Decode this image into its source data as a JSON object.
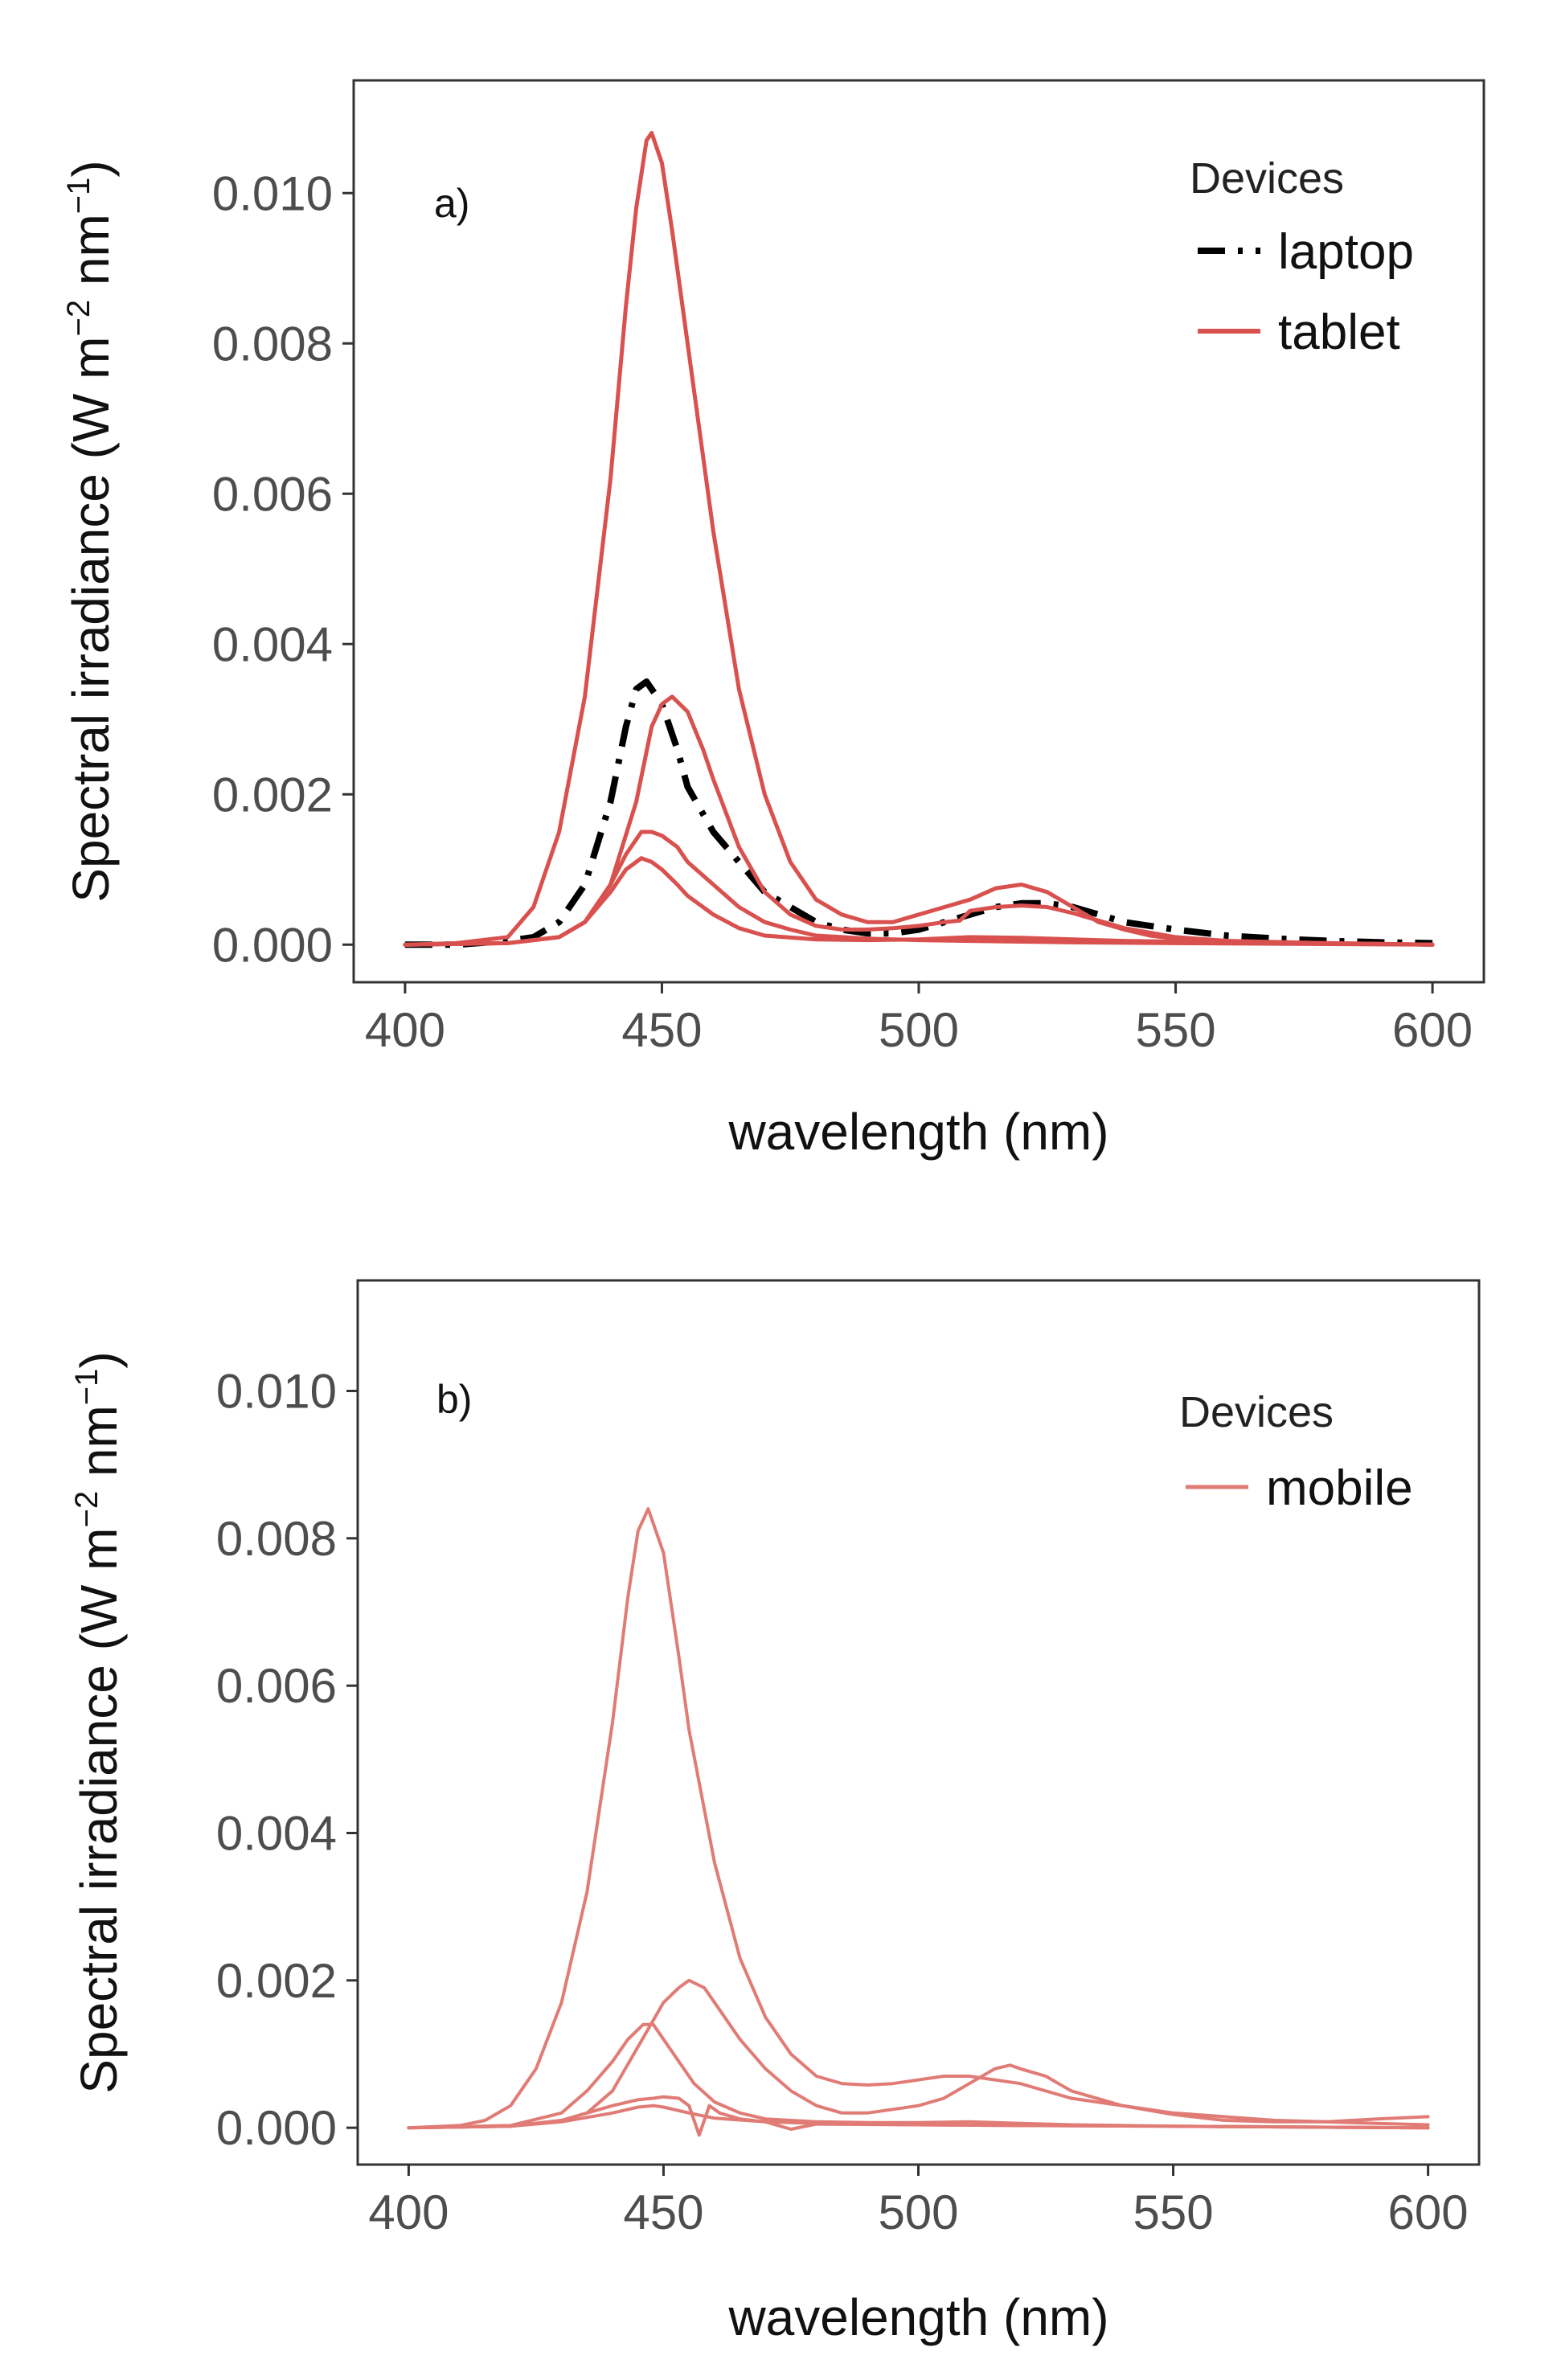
{
  "figure": {
    "colors": {
      "laptop": "#000000",
      "tablet": "#d9514e",
      "mobile": "#e07b75",
      "axis": "#333333",
      "tick_text": "#4d4d4d"
    }
  },
  "chart_data": [
    {
      "type": "line",
      "panel_label": "a)",
      "xlabel": "wavelength (nm)",
      "ylabel_main": "Spectral irradiance (W m",
      "ylabel_sup1": "−2",
      "ylabel_mid": " nm",
      "ylabel_sup2": "−1",
      "ylabel_end": ")",
      "xlim": [
        400,
        600
      ],
      "ylim": [
        -0.0005,
        0.0115
      ],
      "xticks": [
        400,
        450,
        500,
        550,
        600
      ],
      "xtick_labels": [
        "400",
        "450",
        "500",
        "550",
        "600"
      ],
      "yticks": [
        0,
        0.002,
        0.004,
        0.006,
        0.008,
        0.01
      ],
      "ytick_labels": [
        "0.000",
        "0.002",
        "0.004",
        "0.006",
        "0.008",
        "0.010"
      ],
      "legend": {
        "title": "Devices",
        "entries": [
          {
            "label": "laptop",
            "color": "#000000",
            "dash": "dashdot"
          },
          {
            "label": "tablet",
            "color": "#d9514e",
            "dash": "solid"
          }
        ]
      },
      "series": [
        {
          "name": "laptop",
          "color": "#000000",
          "dash": "dashdot",
          "width": 8,
          "x": [
            400,
            410,
            420,
            425,
            430,
            435,
            440,
            443,
            445,
            447,
            450,
            453,
            455,
            460,
            465,
            470,
            475,
            480,
            485,
            490,
            495,
            500,
            505,
            510,
            515,
            520,
            525,
            530,
            535,
            540,
            545,
            550,
            560,
            570,
            580,
            590,
            600
          ],
          "y": [
            0,
            0,
            5e-05,
            0.0001,
            0.0003,
            0.0008,
            0.0019,
            0.0029,
            0.0034,
            0.0035,
            0.0032,
            0.0026,
            0.0021,
            0.0015,
            0.0011,
            0.0007,
            0.0005,
            0.0003,
            0.0002,
            0.00015,
            0.00015,
            0.0002,
            0.0003,
            0.0004,
            0.0005,
            0.00055,
            0.00055,
            0.0005,
            0.0004,
            0.0003,
            0.00025,
            0.0002,
            0.00012,
            8e-05,
            5e-05,
            3e-05,
            2e-05
          ]
        },
        {
          "name": "tablet",
          "color": "#d9514e",
          "dash": "solid",
          "width": 5,
          "x": [
            400,
            410,
            420,
            425,
            430,
            435,
            440,
            443,
            445,
            447,
            448,
            450,
            452,
            455,
            460,
            465,
            470,
            475,
            480,
            485,
            490,
            495,
            500,
            505,
            510,
            515,
            520,
            525,
            530,
            535,
            540,
            545,
            550,
            560,
            570,
            580,
            590,
            600
          ],
          "y": [
            0,
            2e-05,
            0.0001,
            0.0005,
            0.0015,
            0.0033,
            0.0062,
            0.0085,
            0.0098,
            0.0107,
            0.0108,
            0.0104,
            0.0095,
            0.008,
            0.0055,
            0.0034,
            0.002,
            0.0011,
            0.0006,
            0.0004,
            0.0003,
            0.0003,
            0.0004,
            0.0005,
            0.0006,
            0.00075,
            0.0008,
            0.0007,
            0.0005,
            0.0003,
            0.0002,
            0.00012,
            8e-05,
            5e-05,
            3e-05,
            2e-05,
            1e-05,
            0
          ]
        },
        {
          "name": "tablet",
          "color": "#d9514e",
          "dash": "solid",
          "width": 5,
          "x": [
            400,
            420,
            430,
            435,
            440,
            445,
            448,
            450,
            452,
            455,
            458,
            460,
            465,
            470,
            475,
            480,
            485,
            490,
            495,
            500,
            505,
            508,
            510,
            515,
            520,
            525,
            530,
            540,
            550,
            560,
            580,
            600
          ],
          "y": [
            0,
            2e-05,
            0.0001,
            0.0003,
            0.0008,
            0.0019,
            0.0029,
            0.0032,
            0.0033,
            0.0031,
            0.0026,
            0.0022,
            0.0013,
            0.0007,
            0.0004,
            0.00025,
            0.0002,
            0.0002,
            0.00022,
            0.00025,
            0.0003,
            0.00032,
            0.00045,
            0.0005,
            0.00052,
            0.0005,
            0.00042,
            0.00022,
            0.0001,
            5e-05,
            2e-05,
            0
          ]
        },
        {
          "name": "tablet",
          "color": "#d9514e",
          "dash": "solid",
          "width": 5,
          "x": [
            400,
            420,
            430,
            435,
            440,
            443,
            446,
            448,
            450,
            453,
            455,
            460,
            465,
            470,
            475,
            480,
            490,
            500,
            510,
            520,
            530,
            550,
            600
          ],
          "y": [
            0,
            2e-05,
            0.0001,
            0.0003,
            0.0008,
            0.0012,
            0.0015,
            0.0015,
            0.00145,
            0.0013,
            0.0011,
            0.0008,
            0.0005,
            0.0003,
            0.0002,
            0.00012,
            8e-05,
            6e-05,
            5e-05,
            4e-05,
            3e-05,
            2e-05,
            0
          ]
        },
        {
          "name": "tablet",
          "color": "#d9514e",
          "dash": "solid",
          "width": 5,
          "x": [
            400,
            420,
            430,
            435,
            440,
            443,
            446,
            448,
            450,
            453,
            455,
            460,
            465,
            470,
            480,
            490,
            500,
            510,
            520,
            540,
            560,
            600
          ],
          "y": [
            0,
            2e-05,
            0.0001,
            0.0003,
            0.0007,
            0.001,
            0.00115,
            0.0011,
            0.001,
            0.0008,
            0.00065,
            0.0004,
            0.00022,
            0.00012,
            7e-05,
            6e-05,
            7e-05,
            0.0001,
            9e-05,
            5e-05,
            3e-05,
            0
          ]
        }
      ]
    },
    {
      "type": "line",
      "panel_label": "b)",
      "xlabel": "wavelength (nm)",
      "ylabel_main": "Spectral irradiance (W m",
      "ylabel_sup1": "−2",
      "ylabel_mid": " nm",
      "ylabel_sup2": "−1",
      "ylabel_end": ")",
      "xlim": [
        400,
        600
      ],
      "ylim": [
        -0.0005,
        0.0115
      ],
      "xticks": [
        400,
        450,
        500,
        550,
        600
      ],
      "xtick_labels": [
        "400",
        "450",
        "500",
        "550",
        "600"
      ],
      "yticks": [
        0,
        0.002,
        0.004,
        0.006,
        0.008,
        0.01
      ],
      "ytick_labels": [
        "0.000",
        "0.002",
        "0.004",
        "0.006",
        "0.008",
        "0.010"
      ],
      "legend": {
        "title": "Devices",
        "entries": [
          {
            "label": "mobile",
            "color": "#e07b75",
            "dash": "solid"
          }
        ]
      },
      "series": [
        {
          "name": "mobile",
          "color": "#e07b75",
          "dash": "solid",
          "width": 4,
          "x": [
            400,
            410,
            415,
            420,
            425,
            430,
            435,
            440,
            443,
            445,
            447,
            450,
            453,
            455,
            460,
            465,
            470,
            475,
            480,
            485,
            490,
            495,
            500,
            505,
            510,
            520,
            530,
            540,
            550,
            560,
            570,
            580,
            590,
            600
          ],
          "y": [
            0,
            3e-05,
            0.0001,
            0.0003,
            0.0008,
            0.0017,
            0.0032,
            0.0055,
            0.0072,
            0.0081,
            0.0084,
            0.0078,
            0.0064,
            0.0054,
            0.0036,
            0.0023,
            0.0015,
            0.001,
            0.0007,
            0.0006,
            0.00058,
            0.0006,
            0.00065,
            0.0007,
            0.0007,
            0.0006,
            0.0004,
            0.0003,
            0.0002,
            0.00015,
            0.0001,
            8e-05,
            6e-05,
            4e-05
          ]
        },
        {
          "name": "mobile",
          "color": "#e07b75",
          "dash": "solid",
          "width": 4,
          "x": [
            400,
            420,
            430,
            435,
            440,
            445,
            450,
            453,
            455,
            458,
            460,
            465,
            470,
            475,
            480,
            485,
            490,
            495,
            500,
            505,
            510,
            515,
            518,
            520,
            525,
            530,
            540,
            550,
            560,
            570,
            580,
            590,
            600
          ],
          "y": [
            0,
            2e-05,
            0.0001,
            0.0002,
            0.0005,
            0.0011,
            0.0017,
            0.0019,
            0.002,
            0.0019,
            0.0017,
            0.0012,
            0.0008,
            0.0005,
            0.0003,
            0.0002,
            0.0002,
            0.00025,
            0.0003,
            0.0004,
            0.0006,
            0.0008,
            0.00085,
            0.0008,
            0.0007,
            0.0005,
            0.0003,
            0.00018,
            0.0001,
            8e-05,
            8e-05,
            0.00012,
            0.00015
          ]
        },
        {
          "name": "mobile",
          "color": "#e07b75",
          "dash": "solid",
          "width": 4,
          "x": [
            400,
            420,
            430,
            435,
            440,
            443,
            446,
            448,
            450,
            453,
            456,
            460,
            465,
            470,
            480,
            490,
            500,
            510,
            520,
            530,
            550,
            600
          ],
          "y": [
            0,
            3e-05,
            0.0002,
            0.0005,
            0.0009,
            0.0012,
            0.0014,
            0.0014,
            0.0012,
            0.0009,
            0.0006,
            0.00035,
            0.0002,
            0.00012,
            8e-05,
            7e-05,
            7e-05,
            8e-05,
            6e-05,
            4e-05,
            2e-05,
            0
          ]
        },
        {
          "name": "mobile",
          "color": "#e07b75",
          "dash": "solid",
          "width": 4,
          "x": [
            400,
            420,
            430,
            440,
            445,
            448,
            450,
            453,
            455,
            457,
            459,
            461,
            465,
            470,
            475,
            480,
            500,
            520,
            550,
            600
          ],
          "y": [
            0,
            2e-05,
            0.0001,
            0.0003,
            0.00038,
            0.0004,
            0.00042,
            0.0004,
            0.0003,
            -0.0001,
            0.0003,
            0.0002,
            0.00012,
            8e-05,
            -2e-05,
            5e-05,
            4e-05,
            3e-05,
            2e-05,
            0
          ]
        },
        {
          "name": "mobile",
          "color": "#e07b75",
          "dash": "solid",
          "width": 4,
          "x": [
            400,
            420,
            430,
            440,
            445,
            448,
            450,
            455,
            460,
            470,
            480,
            500,
            520,
            550,
            600
          ],
          "y": [
            0,
            2e-05,
            8e-05,
            0.0002,
            0.00028,
            0.0003,
            0.00028,
            0.0002,
            0.00013,
            8e-05,
            6e-05,
            4e-05,
            3e-05,
            2e-05,
            0
          ]
        }
      ]
    }
  ]
}
